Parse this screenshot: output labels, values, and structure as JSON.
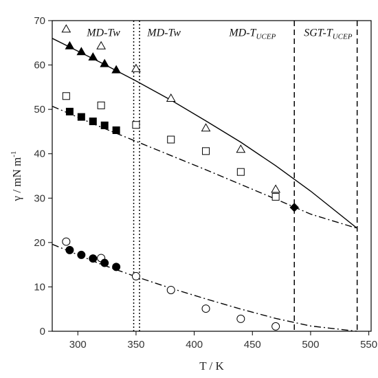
{
  "chart_data": {
    "type": "scatter",
    "xlabel": "T / K",
    "ylabel": "γ / mN m",
    "ylabel_superscript": "-1",
    "xlim": [
      278,
      552
    ],
    "ylim": [
      0,
      70
    ],
    "xticks": [
      300,
      350,
      400,
      450,
      500,
      550
    ],
    "yticks": [
      0,
      10,
      20,
      30,
      40,
      50,
      60,
      70
    ],
    "grid": false,
    "annotations": [
      {
        "id": "md-tw-1",
        "text": "MD-Tw",
        "sub": "",
        "x": 322,
        "y": 66.5
      },
      {
        "id": "md-tw-2",
        "text": "MD-Tw",
        "sub": "",
        "x": 374,
        "y": 66.5
      },
      {
        "id": "md-tucep",
        "text": "MD-T",
        "sub": "UCEP",
        "x": 450,
        "y": 66.5
      },
      {
        "id": "sgt-tucep",
        "text": "SGT-T",
        "sub": "UCEP",
        "x": 515,
        "y": 66.5
      }
    ],
    "vlines": [
      {
        "x": 348,
        "style": "dotted"
      },
      {
        "x": 353,
        "style": "dotted"
      },
      {
        "x": 486,
        "style": "dashed"
      },
      {
        "x": 540,
        "style": "dashed"
      }
    ],
    "series": [
      {
        "marker": "triangle",
        "filled": false,
        "x": [
          290,
          320,
          350,
          380,
          410,
          440,
          470
        ],
        "y": [
          68.1,
          64.3,
          59.2,
          52.5,
          45.8,
          41.0,
          32.0
        ]
      },
      {
        "marker": "triangle",
        "filled": true,
        "x": [
          293,
          303,
          313,
          323,
          333
        ],
        "y": [
          64.3,
          63.0,
          61.8,
          60.3,
          58.9
        ]
      },
      {
        "marker": "square",
        "filled": false,
        "x": [
          290,
          320,
          350,
          380,
          410,
          440,
          470
        ],
        "y": [
          53.0,
          50.9,
          46.5,
          43.2,
          40.6,
          35.9,
          30.3
        ]
      },
      {
        "marker": "square",
        "filled": true,
        "x": [
          293,
          303,
          313,
          323,
          333
        ],
        "y": [
          49.5,
          48.3,
          47.3,
          46.4,
          45.3
        ]
      },
      {
        "marker": "circle",
        "filled": false,
        "x": [
          290,
          320,
          350,
          380,
          410,
          440,
          470
        ],
        "y": [
          20.2,
          16.5,
          12.4,
          9.3,
          5.1,
          2.8,
          1.1
        ]
      },
      {
        "marker": "circle",
        "filled": true,
        "x": [
          293,
          303,
          313,
          323,
          333
        ],
        "y": [
          18.3,
          17.2,
          16.4,
          15.4,
          14.5
        ]
      },
      {
        "marker": "diamond",
        "filled": true,
        "x": [
          486
        ],
        "y": [
          27.9
        ]
      }
    ],
    "curves": [
      {
        "style": "solid",
        "x": [
          278,
          320,
          350,
          380,
          410,
          440,
          470,
          500,
          540
        ],
        "y": [
          66.0,
          60.5,
          56.4,
          52.1,
          47.4,
          42.6,
          37.3,
          31.6,
          23.2
        ]
      },
      {
        "style": "dashdot",
        "x": [
          278,
          320,
          350,
          380,
          410,
          440,
          470,
          500,
          540
        ],
        "y": [
          50.7,
          46.0,
          42.8,
          39.6,
          36.4,
          33.1,
          29.8,
          26.4,
          23.2
        ]
      },
      {
        "style": "dashdot",
        "x": [
          278,
          320,
          350,
          380,
          410,
          440,
          470,
          500,
          540
        ],
        "y": [
          19.6,
          15.1,
          12.3,
          9.7,
          7.3,
          5.0,
          2.9,
          1.2,
          0.0
        ]
      }
    ]
  }
}
